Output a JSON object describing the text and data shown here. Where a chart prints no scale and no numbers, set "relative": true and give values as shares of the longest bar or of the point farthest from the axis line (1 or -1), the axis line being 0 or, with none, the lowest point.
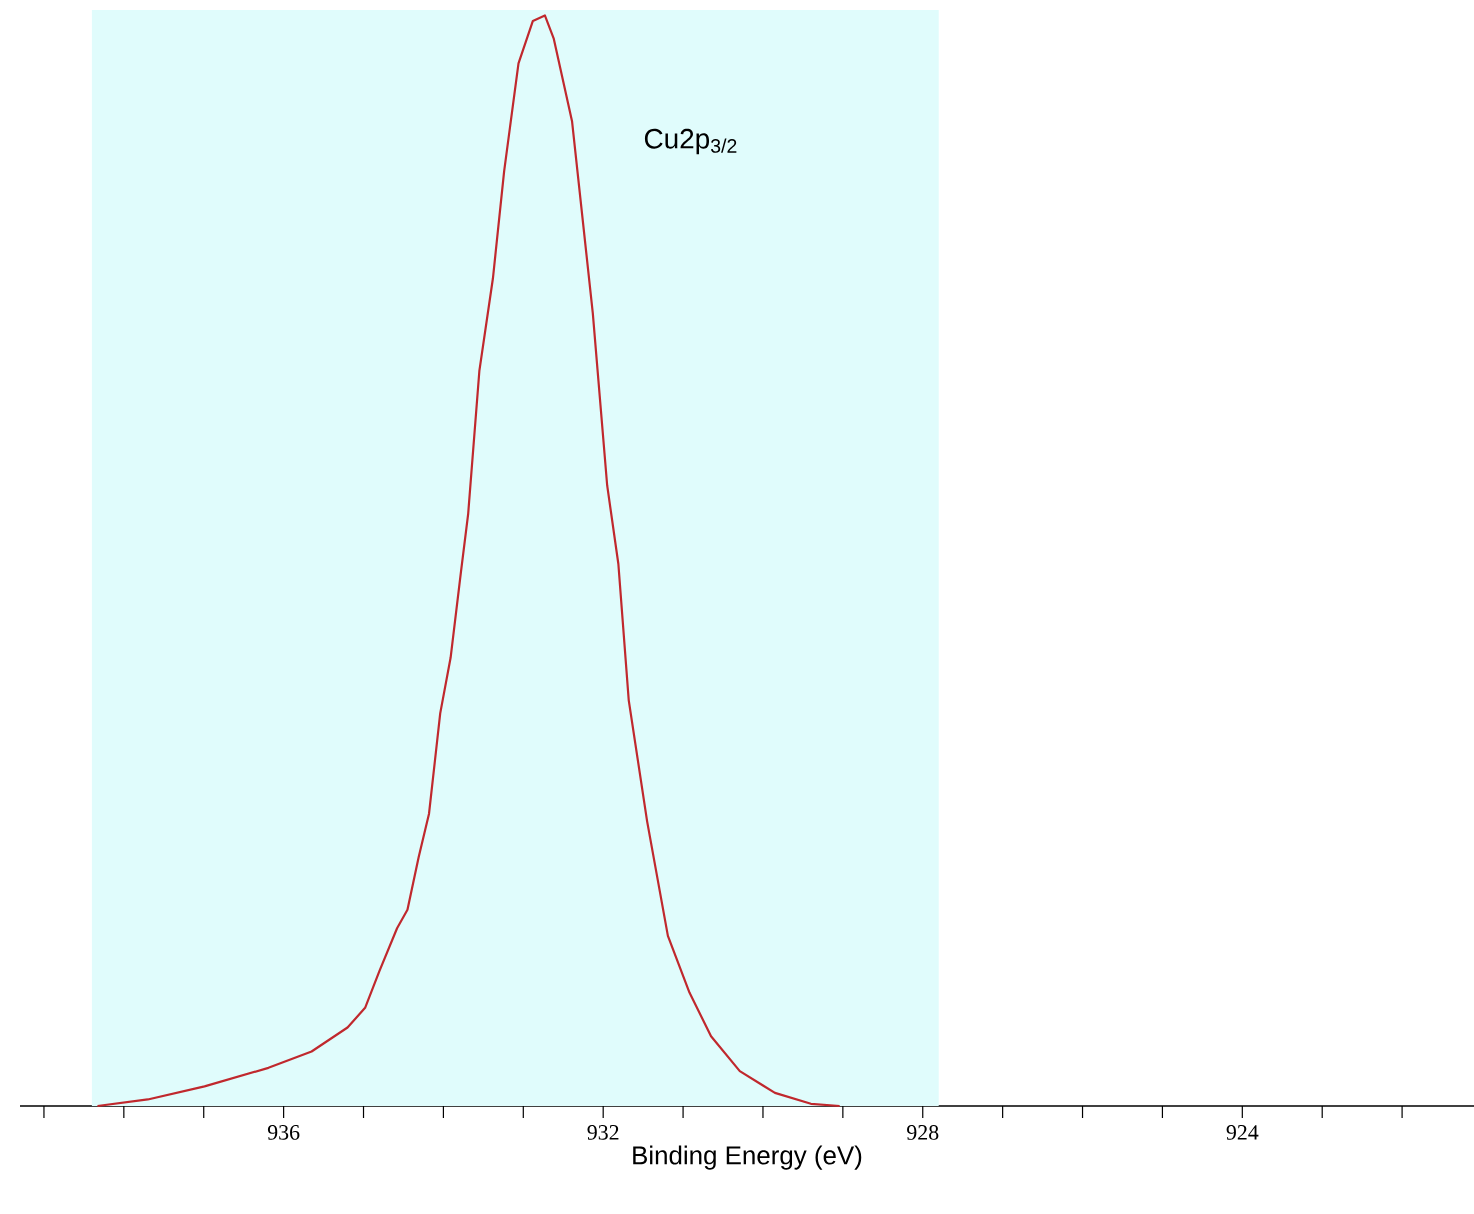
{
  "chart_data": {
    "type": "line",
    "relative": true,
    "xlabel": "Binding Energy (eV)",
    "annotations": [
      "Cu2p$_{3/2}$"
    ],
    "xlim": [
      939.3,
      921.1
    ],
    "xticks": [
      {
        "value": 939,
        "label": null
      },
      {
        "value": 938,
        "label": null
      },
      {
        "value": 937,
        "label": null
      },
      936,
      {
        "value": 935,
        "label": null
      },
      {
        "value": 934,
        "label": null
      },
      {
        "value": 933,
        "label": null
      },
      932,
      {
        "value": 931,
        "label": null
      },
      {
        "value": 930,
        "label": null
      },
      {
        "value": 929,
        "label": null
      },
      928,
      {
        "value": 927,
        "label": null
      },
      {
        "value": 926,
        "label": null
      },
      {
        "value": 925,
        "label": null
      },
      924,
      {
        "value": 923,
        "label": null
      },
      {
        "value": 922,
        "label": null
      }
    ],
    "bands": [
      {
        "axis": "x",
        "from": 938.4,
        "to": 927.8,
        "color": "#e0fcfc"
      }
    ],
    "marker": "none",
    "line_style": "solid",
    "series": [
      {
        "color": "#c0282d",
        "x": [
          938.33,
          937.7,
          936.99,
          936.19,
          935.65,
          935.2,
          934.98,
          934.8,
          934.58,
          934.45,
          934.31,
          934.18,
          934.04,
          933.91,
          933.78,
          933.69,
          933.55,
          933.38,
          933.24,
          933.06,
          932.88,
          932.73,
          932.62,
          932.39,
          932.13,
          931.95,
          931.81,
          931.68,
          931.45,
          931.19,
          930.92,
          930.65,
          930.29,
          929.85,
          929.4,
          929.04
        ],
        "values": [
          0,
          0.006,
          0.018,
          0.035,
          0.05,
          0.072,
          0.09,
          0.124,
          0.163,
          0.18,
          0.228,
          0.268,
          0.36,
          0.411,
          0.49,
          0.543,
          0.674,
          0.759,
          0.857,
          0.956,
          0.995,
          1,
          0.979,
          0.903,
          0.727,
          0.569,
          0.497,
          0.372,
          0.261,
          0.156,
          0.104,
          0.064,
          0.032,
          0.012,
          0.002,
          0
        ]
      }
    ]
  }
}
